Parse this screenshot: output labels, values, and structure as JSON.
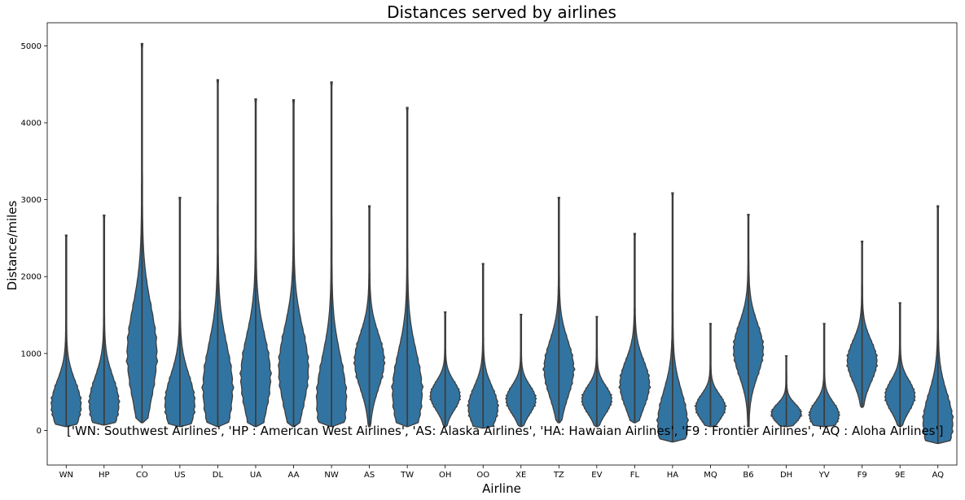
{
  "chart_data": {
    "type": "violin",
    "title": "Distances served by airlines",
    "xlabel": "Airline",
    "ylabel": "Distance/miles",
    "ylim": [
      -450,
      5300
    ],
    "yticks": [
      0,
      1000,
      2000,
      3000,
      4000,
      5000
    ],
    "grid": false,
    "color": "#3274a1",
    "annotation": "['WN: Southwest Airlines', 'HP : American West Airlines', 'AS: Alaska Airlines', 'HA: Hawaian Airlines', 'F9 : Frontier Airlines', 'AQ : Aloha Airlines']",
    "categories": [
      "WN",
      "HP",
      "CO",
      "US",
      "DL",
      "UA",
      "AA",
      "NW",
      "AS",
      "TW",
      "OH",
      "OO",
      "XE",
      "TZ",
      "EV",
      "FL",
      "HA",
      "MQ",
      "B6",
      "DH",
      "YV",
      "F9",
      "9E",
      "AQ"
    ],
    "series": [
      {
        "cat": "WN",
        "min": 50,
        "max": 2540,
        "mode": 330
      },
      {
        "cat": "HP",
        "min": 70,
        "max": 2800,
        "mode": 350
      },
      {
        "cat": "CO",
        "min": 100,
        "max": 5030,
        "mode": 1000
      },
      {
        "cat": "US",
        "min": 50,
        "max": 3030,
        "mode": 350
      },
      {
        "cat": "DL",
        "min": 50,
        "max": 4560,
        "mode": 550
      },
      {
        "cat": "UA",
        "min": 50,
        "max": 4310,
        "mode": 700
      },
      {
        "cat": "AA",
        "min": 50,
        "max": 4300,
        "mode": 800
      },
      {
        "cat": "NW",
        "min": 50,
        "max": 4530,
        "mode": 400
      },
      {
        "cat": "AS",
        "min": 50,
        "max": 2920,
        "mode": 900
      },
      {
        "cat": "TW",
        "min": 50,
        "max": 4200,
        "mode": 500
      },
      {
        "cat": "OH",
        "min": 50,
        "max": 1540,
        "mode": 450
      },
      {
        "cat": "OO",
        "min": 30,
        "max": 2170,
        "mode": 300
      },
      {
        "cat": "XE",
        "min": 50,
        "max": 1510,
        "mode": 400
      },
      {
        "cat": "TZ",
        "min": 100,
        "max": 3030,
        "mode": 800
      },
      {
        "cat": "EV",
        "min": 50,
        "max": 1480,
        "mode": 400
      },
      {
        "cat": "FL",
        "min": 100,
        "max": 2560,
        "mode": 600
      },
      {
        "cat": "HA",
        "min": -150,
        "max": 3090,
        "mode": 100
      },
      {
        "cat": "MQ",
        "min": 50,
        "max": 1390,
        "mode": 300
      },
      {
        "cat": "B6",
        "min": 50,
        "max": 2810,
        "mode": 1050
      },
      {
        "cat": "DH",
        "min": 50,
        "max": 970,
        "mode": 220
      },
      {
        "cat": "YV",
        "min": 50,
        "max": 1390,
        "mode": 200
      },
      {
        "cat": "F9",
        "min": 300,
        "max": 2460,
        "mode": 900
      },
      {
        "cat": "9E",
        "min": 50,
        "max": 1660,
        "mode": 450
      },
      {
        "cat": "AQ",
        "min": -170,
        "max": 2920,
        "mode": 100
      }
    ]
  }
}
